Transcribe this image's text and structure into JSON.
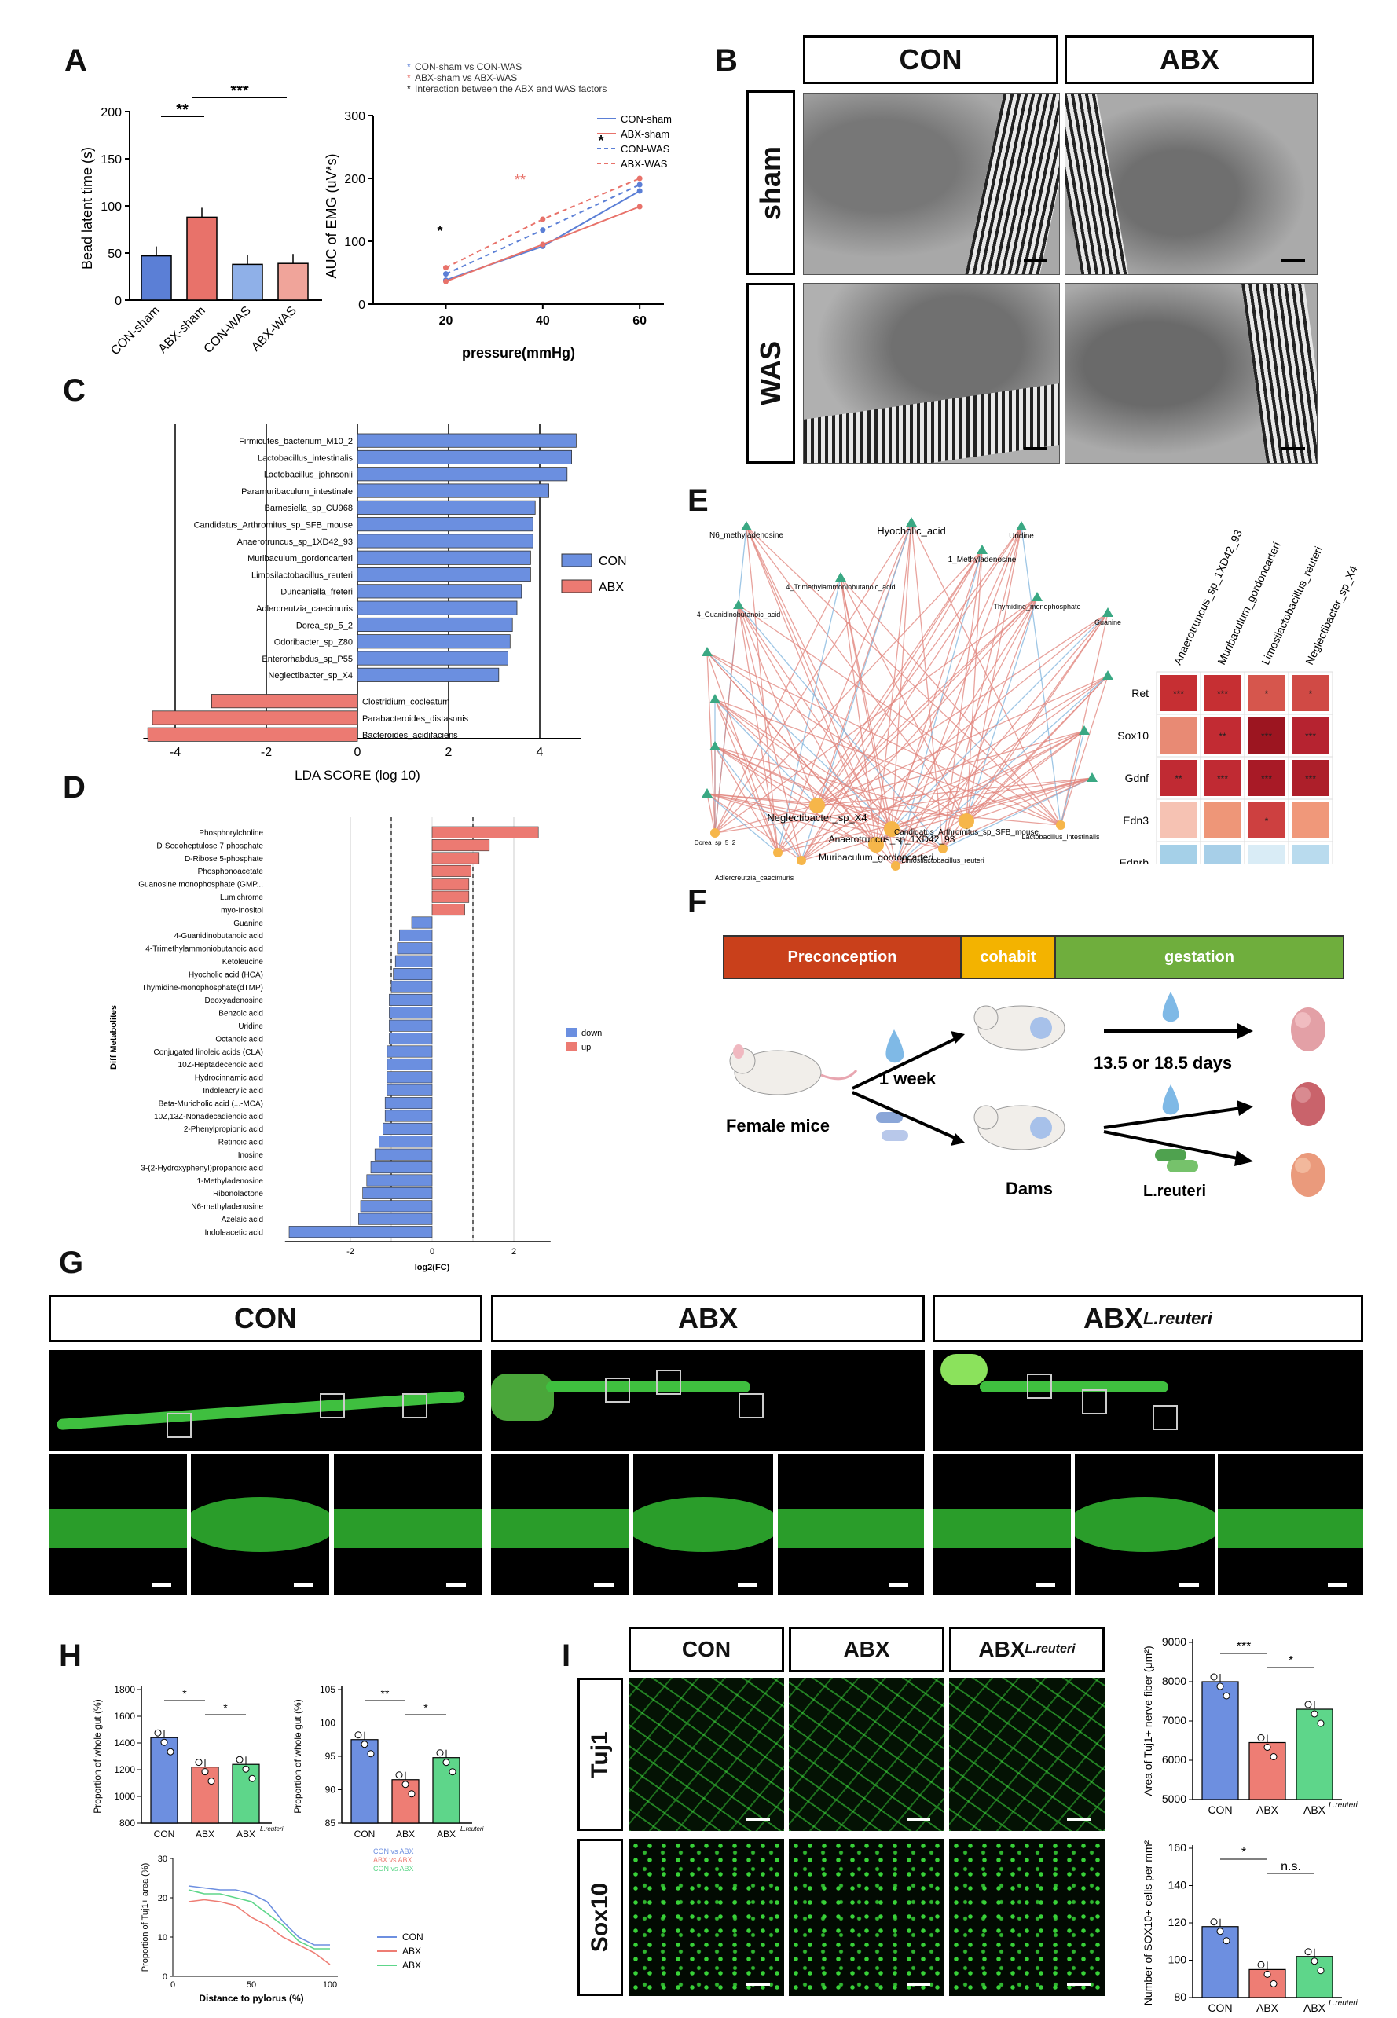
{
  "panels": {
    "A": "A",
    "B": "B",
    "C": "C",
    "D": "D",
    "E": "E",
    "F": "F",
    "G": "G",
    "H": "H",
    "I": "I"
  },
  "panelA": {
    "bar_ylabel": "Bead latent time (s)",
    "bar_groups": [
      "CON-sham",
      "ABX-sham",
      "CON-WAS",
      "ABX-WAS"
    ],
    "bar_yticks": [
      "0",
      "50",
      "100",
      "150",
      "200"
    ],
    "sig1": "**",
    "sig2": "***",
    "line_ylabel": "AUC of EMG (uV*s)",
    "line_xlabel": "pressure(mmHg)",
    "line_xticks": [
      "20",
      "40",
      "60"
    ],
    "line_yticks": [
      "0",
      "100",
      "200",
      "300"
    ],
    "legend_top": [
      "CON-sham vs CON-WAS",
      "ABX-sham vs ABX-WAS",
      "Interaction between the ABX and WAS factors"
    ],
    "legend_series": [
      "CON-sham",
      "ABX-sham",
      "CON-WAS",
      "ABX-WAS"
    ],
    "stars": {
      "p20": "*",
      "p40": "**",
      "p60": "*"
    }
  },
  "panelB": {
    "col_headers": [
      "CON",
      "ABX"
    ],
    "row_headers": [
      "sham",
      "WAS"
    ]
  },
  "panelC": {
    "legend": [
      "CON",
      "ABX"
    ],
    "xlabel": "LDA SCORE (log 10)",
    "xticks": [
      "-4",
      "-2",
      "0",
      "2",
      "4"
    ]
  },
  "panelD": {
    "ylabel": "Diff Metabolites",
    "xlabel": "log2(FC)",
    "xticks": [
      "-2",
      "0",
      "2"
    ],
    "legend": [
      "down",
      "up"
    ]
  },
  "panelE": {
    "network_labels": [
      "N6_methyladenosine",
      "Hyocholic_acid",
      "1_Methyladenosine",
      "Uridine",
      "4_Trimethylammoniobutanoic_acid",
      "4_Guanidinobutanoic_acid",
      "Thymidine_monophosphate",
      "Guanine",
      "Neglectibacter_sp_X4",
      "Anaerotruncus_sp_1XD42_93",
      "Muribaculum_gordoncarteri",
      "Candidatus_Arthromitus_sp_SFB_mouse",
      "Limosilactobacillus_reuteri",
      "Adlercreutzia_caecimuris",
      "Lactobacillus_intestinalis",
      "Dorea_sp_5_2"
    ],
    "heat_cols": [
      "Anaerotruncus_sp_1XD42_93",
      "Muribaculum_gordoncarteri",
      "Limosilactobacillus_reuteri",
      "Neglectibacter_sp_X4"
    ],
    "heat_rows": [
      "Ret",
      "Sox10",
      "Gdnf",
      "Edn3",
      "Ednrb"
    ],
    "heat_stars": [
      [
        "***",
        "***",
        "*",
        "*"
      ],
      [
        "",
        "**",
        "***",
        "***"
      ],
      [
        "**",
        "***",
        "***",
        "***"
      ],
      [
        "",
        "",
        "*",
        ""
      ],
      [
        "",
        "",
        "",
        ""
      ]
    ]
  },
  "panelF": {
    "timeline": [
      "Preconception",
      "cohabit",
      "gestation"
    ],
    "female": "Female mice",
    "week": "1 week",
    "days": "13.5 or 18.5 days",
    "dams": "Dams",
    "lreuteri": "L.reuteri"
  },
  "panelG": {
    "headers": [
      "CON",
      "ABX",
      "ABX"
    ],
    "sup": "L.reuteri"
  },
  "panelH": {
    "left_ylabel": "Proportion of whole gut (%)",
    "left_yticks": [
      "800",
      "1000",
      "1200",
      "1400",
      "1600",
      "1800"
    ],
    "right_ylabel": "Proportion of whole gut (%)",
    "right_yticks": [
      "85",
      "90",
      "95",
      "100",
      "105"
    ],
    "groups": [
      "CON",
      "ABX",
      "ABX"
    ],
    "sup": "L.reuteri",
    "sig_left": [
      "*",
      "*"
    ],
    "sig_right": [
      "**",
      "*"
    ],
    "line_ylabel": "Proportion of Tuj1+ area (%)",
    "line_xlabel": "Distance to pylorus (%)",
    "line_xticks": [
      "0",
      "50",
      "100"
    ],
    "line_yticks": [
      "0",
      "10",
      "20",
      "30"
    ],
    "line_legend": [
      "CON",
      "ABX",
      "ABX"
    ],
    "line_cmp": [
      "CON vs ABX",
      "ABX vs ABX",
      "CON vs ABX"
    ]
  },
  "panelI": {
    "col_headers": [
      "CON",
      "ABX",
      "ABX"
    ],
    "sup": "L.reuteri",
    "row_headers": [
      "Tuj1",
      "Sox10"
    ],
    "top_ylabel": "Area of Tuj1+ nerve fiber (μm²)",
    "top_yticks": [
      "5000",
      "6000",
      "7000",
      "8000",
      "9000"
    ],
    "top_sig": [
      "***",
      "*"
    ],
    "bot_ylabel": "Number of SOX10+ cells per mm²",
    "bot_yticks": [
      "80",
      "100",
      "120",
      "140",
      "160"
    ],
    "bot_sig": [
      "*",
      "n.s."
    ],
    "groups": [
      "CON",
      "ABX",
      "ABX"
    ]
  },
  "chart_data": [
    {
      "type": "bar",
      "id": "A-bar",
      "categories": [
        "CON-sham",
        "ABX-sham",
        "CON-WAS",
        "ABX-WAS"
      ],
      "values": [
        47,
        88,
        38,
        39
      ],
      "ylabel": "Bead latent time (s)",
      "ylim": [
        0,
        200
      ],
      "colors": [
        "#5b7fd6",
        "#e8726a",
        "#8fb0e8",
        "#f0a49a"
      ]
    },
    {
      "type": "line",
      "id": "A-line",
      "x": [
        20,
        40,
        60
      ],
      "xlabel": "pressure(mmHg)",
      "ylabel": "AUC of EMG (uV*s)",
      "ylim": [
        0,
        300
      ],
      "series": [
        {
          "name": "CON-sham",
          "values": [
            38,
            92,
            180
          ],
          "color": "#5b7fd6"
        },
        {
          "name": "ABX-sham",
          "values": [
            36,
            95,
            155
          ],
          "color": "#e8726a"
        },
        {
          "name": "CON-WAS",
          "values": [
            48,
            118,
            190
          ],
          "color": "#5b7fd6"
        },
        {
          "name": "ABX-WAS",
          "values": [
            58,
            135,
            200
          ],
          "color": "#e8726a"
        }
      ]
    },
    {
      "type": "bar",
      "id": "C-lda",
      "xlabel": "LDA SCORE (log 10)",
      "xlim": [
        -5,
        5
      ],
      "categories": [
        "Firmicutes_bacterium_M10_2",
        "Lactobacillus_intestinalis",
        "Lactobacillus_johnsonii",
        "Paramuribaculum_intestinale",
        "Barnesiella_sp_CU968",
        "Candidatus_Arthromitus_sp_SFB_mouse",
        "Anaerotruncus_sp_1XD42_93",
        "Muribaculum_gordoncarteri",
        "Limosilactobacillus_reuteri",
        "Duncaniella_freteri",
        "Adlercreutzia_caecimuris",
        "Dorea_sp_5_2",
        "Odoribacter_sp_Z80",
        "Enterorhabdus_sp_P55",
        "Neglectibacter_sp_X4",
        "Clostridium_cocleatum",
        "Parabacteroides_distasonis",
        "Bacteroides_acidifaciens"
      ],
      "values": [
        4.8,
        4.7,
        4.6,
        4.2,
        3.9,
        3.85,
        3.85,
        3.8,
        3.8,
        3.6,
        3.5,
        3.4,
        3.35,
        3.3,
        3.1,
        -3.2,
        -4.5,
        -4.6
      ],
      "series": [
        {
          "name": "CON"
        },
        {
          "name": "ABX"
        }
      ]
    },
    {
      "type": "bar",
      "id": "D-fc",
      "xlabel": "log2(FC)",
      "xlim": [
        -3.5,
        3
      ],
      "categories": [
        "Phosphorylcholine",
        "D-Sedoheptulose 7-phosphate",
        "D-Ribose 5-phosphate",
        "Phosphonoacetate",
        "Guanosine monophosphate (GMP...",
        "Lumichrome",
        "myo-Inositol",
        "Guanine",
        "4-Guanidinobutanoic acid",
        "4-Trimethylammoniobutanoic acid",
        "Ketoleucine",
        "Hyocholic acid (HCA)",
        "Thymidine-monophosphate(dTMP)",
        "Deoxyadenosine",
        "Benzoic acid",
        "Uridine",
        "Octanoic acid",
        "Conjugated linoleic acids (CLA)",
        "10Z-Heptadecenoic acid",
        "Hydrocinnamic acid",
        "Indoleacrylic acid",
        "Beta-Muricholic acid (...-MCA)",
        "10Z,13Z-Nonadecadienoic acid",
        "2-Phenylpropionic acid",
        "Retinoic acid",
        "Inosine",
        "3-(2-Hydroxyphenyl)propanoic acid",
        "1-Methyladenosine",
        "Ribonolactone",
        "N6-methyladenosine",
        "Azelaic acid",
        "Indoleacetic acid"
      ],
      "values": [
        2.6,
        1.4,
        1.15,
        0.95,
        0.9,
        0.9,
        0.8,
        -0.5,
        -0.8,
        -0.85,
        -0.9,
        -0.95,
        -1.0,
        -1.05,
        -1.05,
        -1.05,
        -1.05,
        -1.1,
        -1.1,
        -1.1,
        -1.1,
        -1.15,
        -1.15,
        -1.2,
        -1.3,
        -1.4,
        -1.5,
        -1.6,
        -1.7,
        -1.75,
        -1.8,
        -3.5
      ],
      "series": [
        {
          "name": "down"
        },
        {
          "name": "up"
        }
      ]
    },
    {
      "type": "bar",
      "id": "H-left",
      "categories": [
        "CON",
        "ABX",
        "ABX L.reuteri"
      ],
      "values": [
        1440,
        1220,
        1240
      ],
      "ylim": [
        800,
        1800
      ],
      "colors": [
        "#6d8fe0",
        "#ee7d74",
        "#5ed68a"
      ]
    },
    {
      "type": "bar",
      "id": "H-right",
      "categories": [
        "CON",
        "ABX",
        "ABX L.reuteri"
      ],
      "values": [
        97.5,
        91.5,
        94.8
      ],
      "ylim": [
        85,
        105
      ],
      "colors": [
        "#6d8fe0",
        "#ee7d74",
        "#5ed68a"
      ]
    },
    {
      "type": "line",
      "id": "H-line",
      "x": [
        10,
        20,
        30,
        40,
        50,
        60,
        70,
        80,
        90,
        100
      ],
      "xlabel": "Distance to pylorus (%)",
      "ylabel": "Proportion of Tuj1+ area (%)",
      "ylim": [
        0,
        30
      ],
      "series": [
        {
          "name": "CON",
          "values": [
            23,
            22.5,
            22,
            22,
            21,
            19,
            14,
            10,
            8,
            8
          ],
          "color": "#6d8fe0"
        },
        {
          "name": "ABX",
          "values": [
            19,
            19.5,
            19,
            18,
            15,
            13,
            10,
            8,
            6,
            3
          ],
          "color": "#ee7d74"
        },
        {
          "name": "ABX L.reuteri",
          "values": [
            22,
            21,
            21,
            20,
            19,
            16,
            13,
            9,
            7,
            7
          ],
          "color": "#5ed68a"
        }
      ]
    },
    {
      "type": "bar",
      "id": "I-top",
      "categories": [
        "CON",
        "ABX",
        "ABX L.reuteri"
      ],
      "values": [
        8000,
        6450,
        7300
      ],
      "ylim": [
        5000,
        9000
      ],
      "colors": [
        "#6d8fe0",
        "#ee7d74",
        "#5ed68a"
      ]
    },
    {
      "type": "bar",
      "id": "I-bot",
      "categories": [
        "CON",
        "ABX",
        "ABX L.reuteri"
      ],
      "values": [
        118,
        95,
        102
      ],
      "ylim": [
        80,
        160
      ],
      "colors": [
        "#6d8fe0",
        "#ee7d74",
        "#5ed68a"
      ]
    }
  ]
}
